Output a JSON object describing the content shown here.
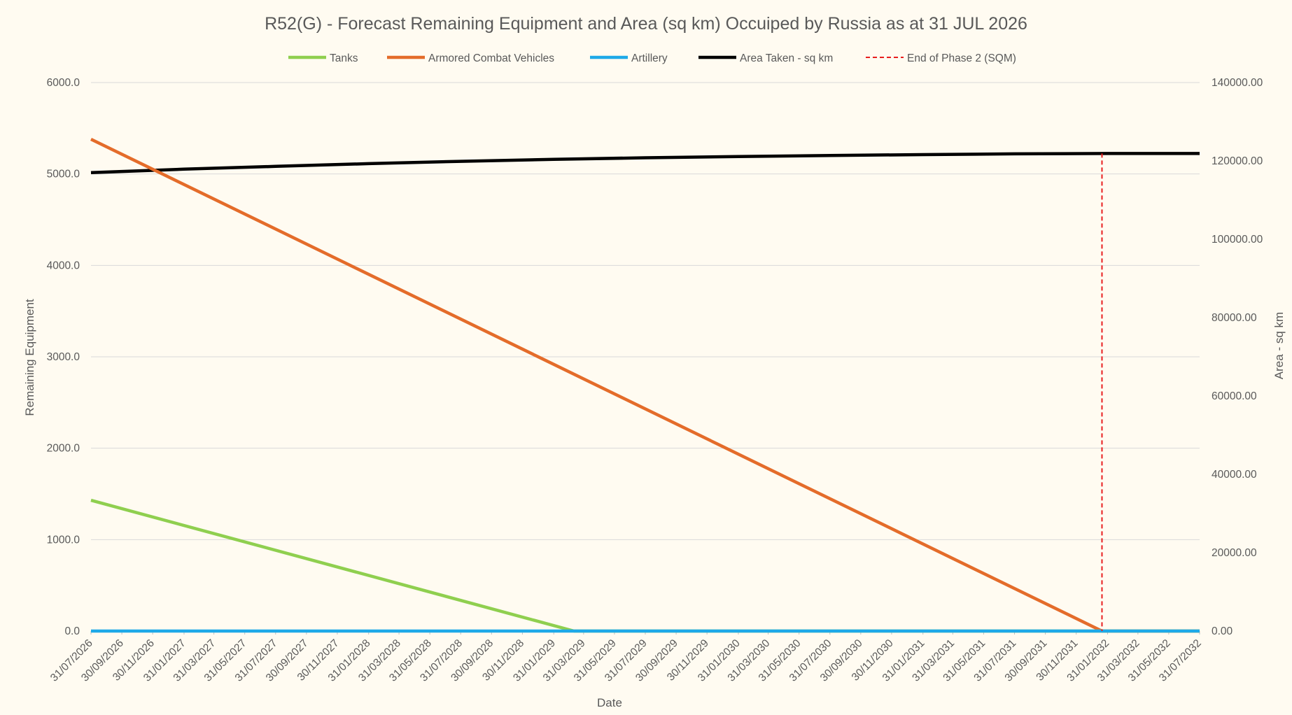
{
  "chart_data": {
    "type": "line",
    "title": "R52(G) - Forecast Remaining Equipment and Area (sq km) Occuiped by Russia as at 31 JUL 2026",
    "xlabel": "Date",
    "ylabel": "Remaining Equipment",
    "y2label": "Area - sq km",
    "ylim": [
      0,
      6000
    ],
    "y2lim": [
      0,
      140000
    ],
    "yticks": [
      "0.0",
      "1000.0",
      "2000.0",
      "3000.0",
      "4000.0",
      "5000.0",
      "6000.0"
    ],
    "y2ticks": [
      "0.00",
      "20000.00",
      "40000.00",
      "60000.00",
      "80000.00",
      "100000.00",
      "120000.00",
      "140000.00"
    ],
    "xticks": [
      "31/07/2026",
      "30/09/2026",
      "30/11/2026",
      "31/01/2027",
      "31/03/2027",
      "31/05/2027",
      "31/07/2027",
      "30/09/2027",
      "30/11/2027",
      "31/01/2028",
      "31/03/2028",
      "31/05/2028",
      "31/07/2028",
      "30/09/2028",
      "30/11/2028",
      "31/01/2029",
      "31/03/2029",
      "31/05/2029",
      "31/07/2029",
      "30/09/2029",
      "30/11/2029",
      "31/01/2030",
      "31/03/2030",
      "31/05/2030",
      "31/07/2030",
      "30/09/2030",
      "30/11/2030",
      "31/01/2031",
      "31/03/2031",
      "31/05/2031",
      "31/07/2031",
      "30/09/2031",
      "30/11/2031",
      "31/01/2032",
      "31/03/2032",
      "31/05/2032",
      "31/07/2032"
    ],
    "grid": true,
    "legend_position": "top",
    "series": [
      {
        "name": "Tanks",
        "color": "#8fcf4f",
        "axis": "left",
        "dash": false,
        "points": [
          [
            "31/07/2026",
            1430
          ],
          [
            "12/03/2029",
            0
          ],
          [
            "31/07/2032",
            0
          ]
        ]
      },
      {
        "name": "Armored Combat Vehicles",
        "color": "#e46c2a",
        "axis": "left",
        "dash": false,
        "points": [
          [
            "31/07/2026",
            5380
          ],
          [
            "20/01/2032",
            0
          ],
          [
            "31/07/2032",
            0
          ]
        ]
      },
      {
        "name": "Artillery",
        "color": "#1ea9e8",
        "axis": "left",
        "dash": false,
        "points": [
          [
            "31/07/2026",
            0
          ],
          [
            "31/07/2032",
            0
          ]
        ]
      },
      {
        "name": "Area Taken - sq km",
        "color": "#000000",
        "axis": "right",
        "dash": false,
        "points": [
          [
            "31/07/2026",
            117000
          ],
          [
            "31/01/2027",
            117900
          ],
          [
            "31/07/2027",
            118600
          ],
          [
            "31/01/2028",
            119300
          ],
          [
            "31/07/2028",
            119900
          ],
          [
            "31/01/2029",
            120400
          ],
          [
            "31/07/2029",
            120800
          ],
          [
            "31/01/2030",
            121100
          ],
          [
            "31/07/2030",
            121400
          ],
          [
            "31/01/2031",
            121600
          ],
          [
            "31/07/2031",
            121800
          ],
          [
            "31/01/2032",
            121900
          ],
          [
            "31/07/2032",
            121900
          ]
        ]
      },
      {
        "name": "End of Phase 2 (SQM)",
        "color": "#e81e1e",
        "axis": "right",
        "dash": true,
        "points": [
          [
            "20/01/2032",
            121900
          ],
          [
            "20/01/2032",
            0
          ]
        ]
      }
    ]
  }
}
